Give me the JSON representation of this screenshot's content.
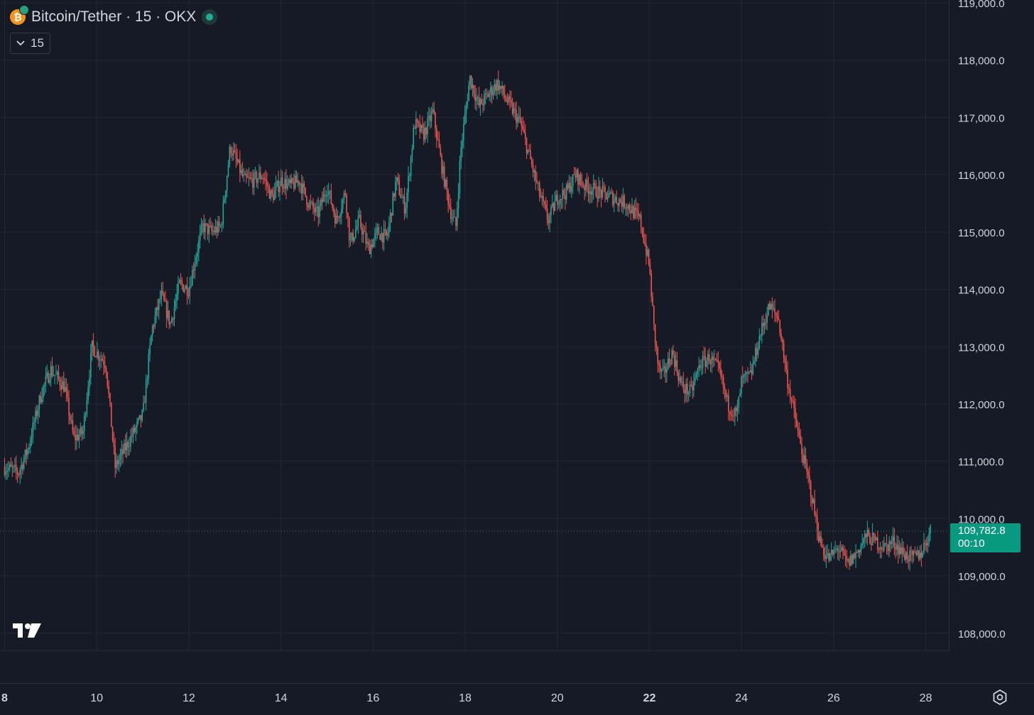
{
  "legend": {
    "symbol": "Bitcoin/Tether · 15 · OKX",
    "coin_icon": "bitcoin-tether-icon",
    "status_icon": "market-open-dot-icon"
  },
  "toolbar": {
    "interval_label": "15",
    "interval_icon": "chevron-down-icon"
  },
  "last_price": {
    "value": "109,782.8",
    "countdown": "00:10"
  },
  "colors": {
    "background": "#161a25",
    "grid": "#232734",
    "up": "#26a69a",
    "down": "#ef5350",
    "last_price_tag": "#089981",
    "axis_text": "#d1d4dc"
  },
  "chart_data": {
    "type": "line",
    "title": "Bitcoin/Tether · 15 · OKX",
    "xlabel": "",
    "ylabel": "",
    "x_tick_labels": [
      "8",
      "10",
      "12",
      "14",
      "16",
      "18",
      "20",
      "22",
      "24",
      "26",
      "28"
    ],
    "x_tick_days": [
      8,
      10,
      12,
      14,
      16,
      18,
      20,
      22,
      24,
      26,
      28
    ],
    "y_tick_labels": [
      "108,000.0",
      "109,000.0",
      "110,000.0",
      "111,000.0",
      "112,000.0",
      "113,000.0",
      "114,000.0",
      "115,000.0",
      "116,000.0",
      "117,000.0",
      "118,000.0",
      "119,000.0"
    ],
    "y_tick_values": [
      108000,
      109000,
      110000,
      111000,
      112000,
      113000,
      114000,
      115000,
      116000,
      117000,
      118000,
      119000
    ],
    "ylim": [
      107700,
      119050
    ],
    "xlim": [
      7.9,
      28.5
    ],
    "grid": true,
    "legend": "top-left",
    "last_price": 109782.8,
    "series": [
      {
        "x": [
          8.0,
          8.3,
          8.5,
          8.8,
          9.0,
          9.3,
          9.5,
          9.7,
          9.9,
          10.2,
          10.4,
          10.6,
          10.8,
          11.0,
          11.2,
          11.4,
          11.6,
          11.8,
          12.0,
          12.1,
          12.3,
          12.5,
          12.7,
          12.9,
          13.2,
          13.4,
          13.6,
          13.8,
          14.0,
          14.2,
          14.4,
          14.6,
          14.8,
          15.0,
          15.2,
          15.4,
          15.5,
          15.7,
          15.9,
          16.1,
          16.3,
          16.5,
          16.7,
          16.9,
          17.1,
          17.3,
          17.5,
          17.7,
          17.8,
          17.9,
          18.1,
          18.3,
          18.5,
          18.7,
          18.9,
          19.2,
          19.4,
          19.6,
          19.8,
          20.0,
          20.2,
          20.4,
          20.6,
          20.9,
          21.2,
          21.5,
          21.8,
          22.0,
          22.1,
          22.2,
          22.3,
          22.5,
          22.7,
          22.9,
          23.1,
          23.3,
          23.5,
          23.7,
          23.9,
          24.0,
          24.2,
          24.4,
          24.6,
          24.8,
          25.0,
          25.2,
          25.3,
          25.5,
          25.7,
          25.8,
          25.9,
          26.1,
          26.3,
          26.5,
          26.7,
          26.9,
          27.1,
          27.3,
          27.5,
          27.7,
          27.9,
          28.1
        ],
        "y": [
          110900,
          110800,
          111200,
          112200,
          112600,
          112300,
          111400,
          111500,
          113000,
          112700,
          110900,
          111200,
          111500,
          111800,
          113300,
          113900,
          113400,
          114100,
          114000,
          114400,
          115100,
          115000,
          115100,
          116500,
          115900,
          115900,
          116000,
          115600,
          115900,
          115800,
          115900,
          115500,
          115300,
          115800,
          115200,
          115700,
          114800,
          115200,
          114700,
          115000,
          114900,
          115900,
          115400,
          116900,
          116700,
          117100,
          116100,
          115300,
          115100,
          116400,
          117700,
          117200,
          117400,
          117600,
          117300,
          116900,
          116300,
          115700,
          115200,
          115600,
          115700,
          116000,
          115800,
          115700,
          115600,
          115500,
          115200,
          114400,
          113300,
          112600,
          112500,
          112900,
          112300,
          112200,
          112700,
          112800,
          112600,
          112000,
          111800,
          112400,
          112500,
          113200,
          113700,
          113500,
          112400,
          111600,
          111200,
          110500,
          109600,
          109400,
          109300,
          109500,
          109200,
          109400,
          109700,
          109600,
          109500,
          109600,
          109400,
          109300,
          109400,
          109782.8
        ]
      }
    ]
  }
}
